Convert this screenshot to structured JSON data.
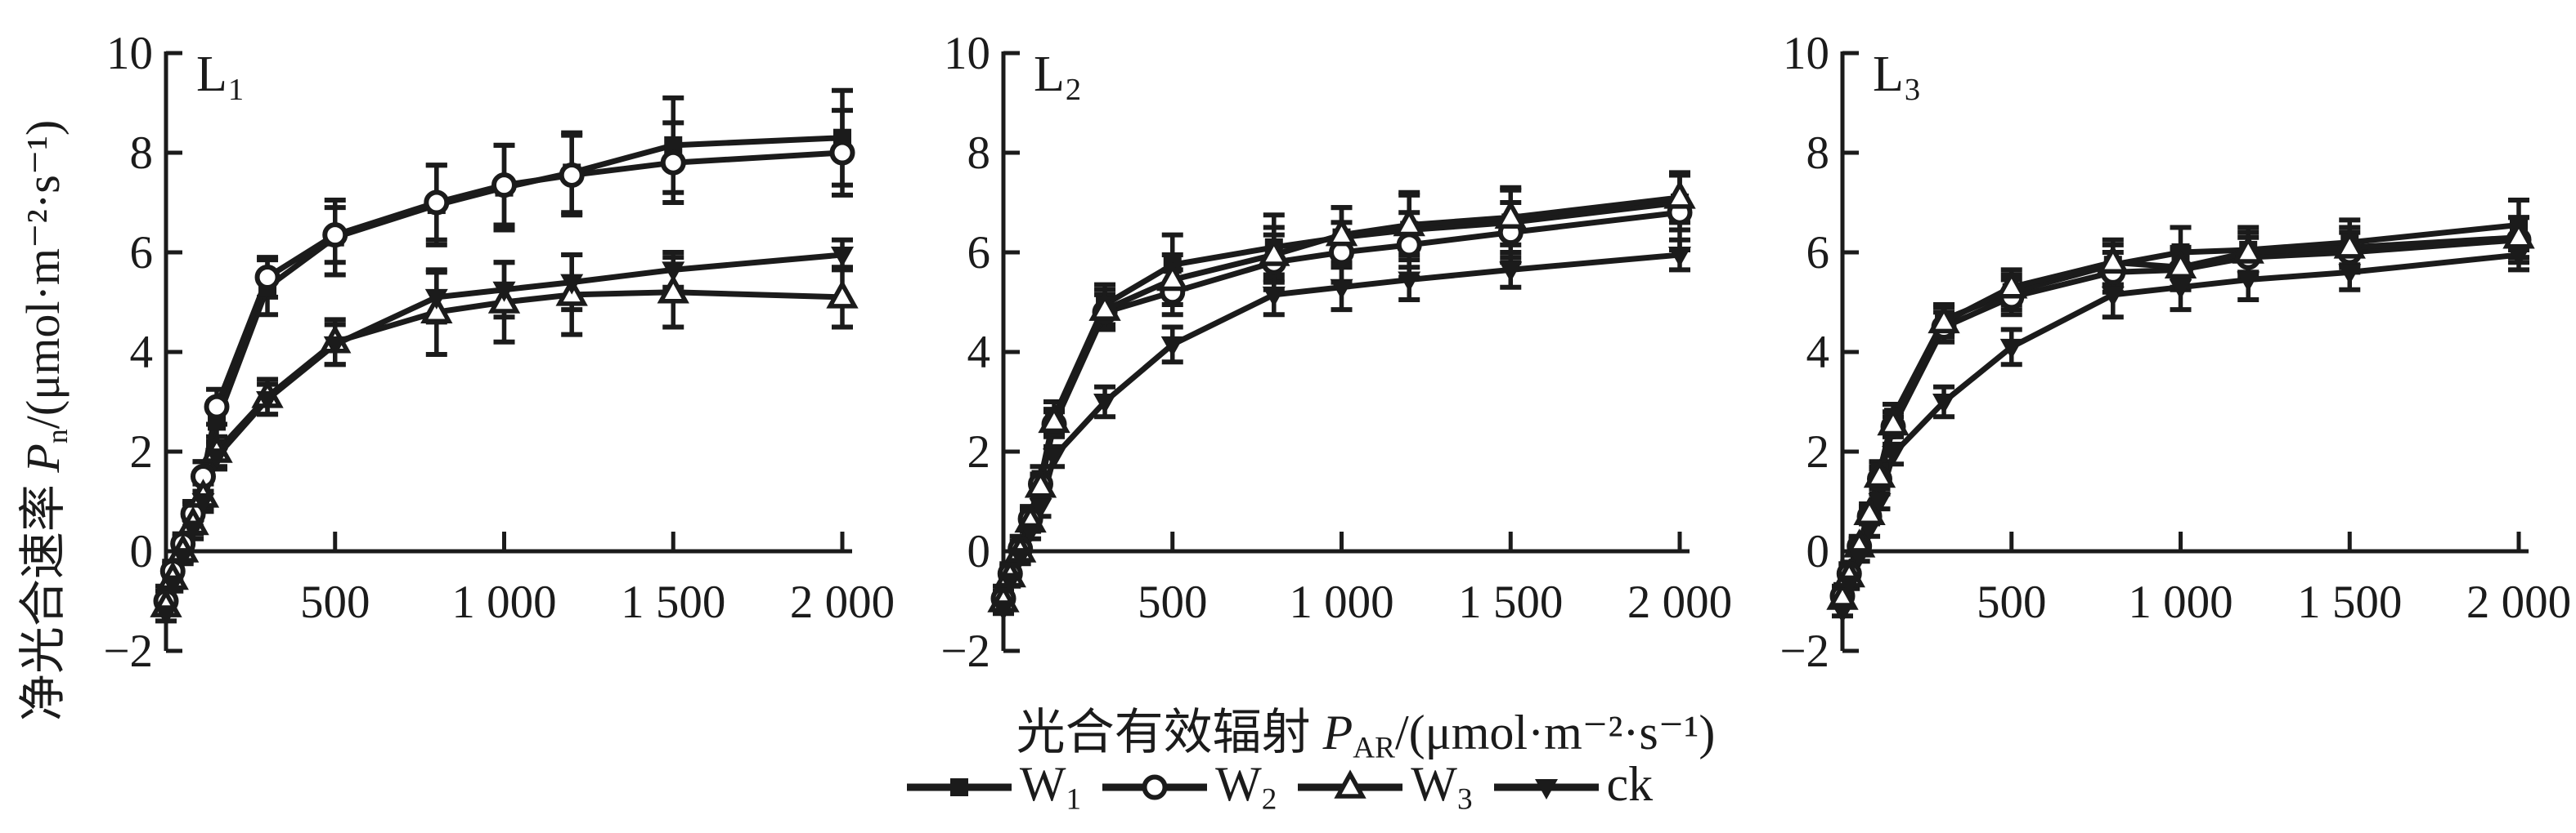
{
  "colors": {
    "ink": "#1b1b1b",
    "background": "#ffffff"
  },
  "figure": {
    "y_axis": {
      "label_prefix": "净光合速率 ",
      "label_symbol": "P",
      "label_sub": "n",
      "label_suffix": "/(μmol·m⁻²·s⁻¹)",
      "ticks": [
        -2,
        0,
        2,
        4,
        6,
        8,
        10
      ],
      "tick_labels": [
        "−2",
        "0",
        "2",
        "4",
        "6",
        "8",
        "10"
      ],
      "range": [
        -2,
        10
      ]
    },
    "x_axis": {
      "label_prefix": "光合有效辐射 ",
      "label_symbol": "P",
      "label_sub": "AR",
      "label_suffix": "/(μmol·m⁻²·s⁻¹)",
      "ticks": [
        500,
        1000,
        1500,
        2000
      ],
      "tick_labels": [
        "500",
        "1 000",
        "1 500",
        "2 000"
      ],
      "range": [
        0,
        2000
      ]
    },
    "panels": [
      {
        "label_base": "L",
        "label_sub": "1"
      },
      {
        "label_base": "L",
        "label_sub": "2"
      },
      {
        "label_base": "L",
        "label_sub": "3"
      }
    ],
    "legend": {
      "items": [
        {
          "label_base": "W",
          "label_sub": "1",
          "marker": "square-filled"
        },
        {
          "label_base": "W",
          "label_sub": "2",
          "marker": "circle-open"
        },
        {
          "label_base": "W",
          "label_sub": "3",
          "marker": "triangle-up-open"
        },
        {
          "label_base": "ck",
          "label_sub": "",
          "marker": "triangle-down-filled"
        }
      ]
    }
  },
  "chart_data": [
    {
      "type": "line",
      "title": "L1",
      "xlabel": "光合有效辐射 PAR/(μmol·m⁻²·s⁻¹)",
      "ylabel": "净光合速率 Pn/(μmol·m⁻²·s⁻¹)",
      "xlim": [
        0,
        2000
      ],
      "ylim": [
        -2,
        10
      ],
      "x": [
        0,
        20,
        50,
        80,
        110,
        150,
        300,
        500,
        800,
        1000,
        1200,
        1500,
        2000
      ],
      "series": [
        {
          "name": "W1",
          "marker": "square-filled",
          "values": [
            -0.9,
            -0.45,
            0.1,
            0.7,
            1.5,
            2.6,
            5.3,
            6.3,
            6.95,
            7.3,
            7.6,
            8.15,
            8.3
          ],
          "errors": [
            0.2,
            0.2,
            0.2,
            0.25,
            0.3,
            0.4,
            0.55,
            0.75,
            0.8,
            0.85,
            0.8,
            0.95,
            0.95
          ]
        },
        {
          "name": "W2",
          "marker": "circle-open",
          "values": [
            -1.0,
            -0.4,
            0.15,
            0.75,
            1.5,
            2.9,
            5.5,
            6.35,
            7.0,
            7.35,
            7.55,
            7.8,
            8.0
          ],
          "errors": [
            0.2,
            0.2,
            0.2,
            0.25,
            0.3,
            0.35,
            0.4,
            0.55,
            0.75,
            0.8,
            0.8,
            0.8,
            0.85
          ]
        },
        {
          "name": "W3",
          "marker": "triangle-up-open",
          "values": [
            -1.1,
            -0.55,
            0.0,
            0.55,
            1.1,
            2.0,
            3.1,
            4.2,
            4.8,
            5.0,
            5.15,
            5.2,
            5.1
          ],
          "errors": [
            0.15,
            0.15,
            0.2,
            0.2,
            0.25,
            0.3,
            0.35,
            0.45,
            0.85,
            0.8,
            0.8,
            0.7,
            0.6
          ]
        },
        {
          "name": "ck",
          "marker": "triangle-down-filled",
          "values": [
            -1.25,
            -0.65,
            -0.1,
            0.45,
            1.0,
            1.9,
            3.05,
            4.15,
            5.1,
            5.25,
            5.4,
            5.65,
            5.95
          ],
          "errors": [
            0.15,
            0.15,
            0.15,
            0.2,
            0.2,
            0.25,
            0.3,
            0.4,
            0.5,
            0.55,
            0.55,
            0.35,
            0.3
          ]
        }
      ]
    },
    {
      "type": "line",
      "title": "L2",
      "xlabel": "光合有效辐射 PAR/(μmol·m⁻²·s⁻¹)",
      "ylabel": "净光合速率 Pn/(μmol·m⁻²·s⁻¹)",
      "xlim": [
        0,
        2000
      ],
      "ylim": [
        -2,
        10
      ],
      "x": [
        0,
        20,
        50,
        80,
        110,
        150,
        300,
        500,
        800,
        1000,
        1200,
        1500,
        2000
      ],
      "series": [
        {
          "name": "W1",
          "marker": "square-filled",
          "values": [
            -0.85,
            -0.4,
            0.1,
            0.7,
            1.45,
            2.7,
            4.95,
            5.75,
            6.1,
            6.3,
            6.45,
            6.6,
            7.0
          ],
          "errors": [
            0.15,
            0.15,
            0.2,
            0.2,
            0.25,
            0.3,
            0.4,
            0.6,
            0.65,
            0.6,
            0.75,
            0.7,
            0.55
          ]
        },
        {
          "name": "W2",
          "marker": "circle-open",
          "values": [
            -0.95,
            -0.45,
            0.05,
            0.65,
            1.35,
            2.55,
            4.8,
            5.2,
            5.8,
            6.0,
            6.15,
            6.4,
            6.8
          ],
          "errors": [
            0.15,
            0.15,
            0.15,
            0.2,
            0.2,
            0.25,
            0.35,
            0.45,
            0.55,
            0.6,
            0.65,
            0.6,
            0.75
          ]
        },
        {
          "name": "W3",
          "marker": "triangle-up-open",
          "values": [
            -1.0,
            -0.5,
            0.0,
            0.6,
            1.3,
            2.6,
            4.85,
            5.45,
            5.95,
            6.35,
            6.55,
            6.7,
            7.1
          ],
          "errors": [
            0.15,
            0.15,
            0.15,
            0.2,
            0.2,
            0.25,
            0.4,
            0.5,
            0.55,
            0.55,
            0.6,
            0.55,
            0.5
          ]
        },
        {
          "name": "ck",
          "marker": "triangle-down-filled",
          "values": [
            -1.15,
            -0.6,
            -0.1,
            0.4,
            0.9,
            1.9,
            3.0,
            4.15,
            5.15,
            5.3,
            5.45,
            5.65,
            5.95
          ],
          "errors": [
            0.1,
            0.1,
            0.15,
            0.15,
            0.2,
            0.2,
            0.3,
            0.35,
            0.4,
            0.45,
            0.4,
            0.35,
            0.3
          ]
        }
      ]
    },
    {
      "type": "line",
      "title": "L3",
      "xlabel": "光合有效辐射 PAR/(μmol·m⁻²·s⁻¹)",
      "ylabel": "净光合速率 Pn/(μmol·m⁻²·s⁻¹)",
      "xlim": [
        0,
        2000
      ],
      "ylim": [
        -2,
        10
      ],
      "x": [
        0,
        20,
        50,
        80,
        110,
        150,
        300,
        500,
        800,
        1000,
        1200,
        1500,
        2000
      ],
      "series": [
        {
          "name": "W1",
          "marker": "square-filled",
          "values": [
            -0.8,
            -0.35,
            0.15,
            0.8,
            1.6,
            2.7,
            4.65,
            5.2,
            5.75,
            6.0,
            6.05,
            6.2,
            6.55
          ],
          "errors": [
            0.1,
            0.1,
            0.15,
            0.15,
            0.2,
            0.25,
            0.3,
            0.35,
            0.4,
            0.5,
            0.45,
            0.45,
            0.5
          ]
        },
        {
          "name": "W2",
          "marker": "circle-open",
          "values": [
            -0.9,
            -0.45,
            0.1,
            0.7,
            1.45,
            2.5,
            4.5,
            5.1,
            5.6,
            5.65,
            5.9,
            6.0,
            6.25
          ],
          "errors": [
            0.1,
            0.1,
            0.15,
            0.15,
            0.2,
            0.2,
            0.3,
            0.35,
            0.4,
            0.4,
            0.4,
            0.4,
            0.45
          ]
        },
        {
          "name": "W3",
          "marker": "triangle-up-open",
          "values": [
            -0.95,
            -0.5,
            0.1,
            0.75,
            1.5,
            2.55,
            4.6,
            5.3,
            5.8,
            5.7,
            6.0,
            6.1,
            6.3
          ],
          "errors": [
            0.1,
            0.1,
            0.15,
            0.15,
            0.2,
            0.25,
            0.3,
            0.35,
            0.45,
            0.4,
            0.4,
            0.4,
            0.4
          ]
        },
        {
          "name": "ck",
          "marker": "triangle-down-filled",
          "values": [
            -1.2,
            -0.65,
            -0.1,
            0.45,
            1.0,
            1.95,
            3.0,
            4.1,
            5.15,
            5.3,
            5.45,
            5.6,
            5.95
          ],
          "errors": [
            0.1,
            0.1,
            0.1,
            0.15,
            0.15,
            0.2,
            0.3,
            0.35,
            0.45,
            0.45,
            0.4,
            0.35,
            0.3
          ]
        }
      ]
    }
  ]
}
